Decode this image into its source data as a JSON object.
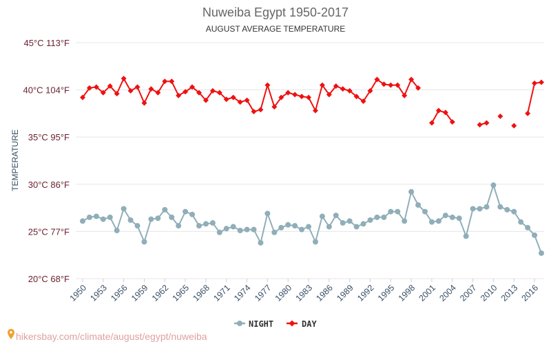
{
  "chart_data": {
    "type": "line",
    "title": "Nuweiba Egypt 1950-2017",
    "subtitle": "AUGUST AVERAGE TEMPERATURE",
    "ylabel": "TEMPERATURE",
    "source": "hikersbay.com/climate/august/egypt/nuweiba",
    "ylim": [
      20,
      45
    ],
    "xlim": [
      1950,
      2017
    ],
    "yticks": [
      {
        "value": 20,
        "label": "20°C 68°F"
      },
      {
        "value": 25,
        "label": "25°C 77°F"
      },
      {
        "value": 30,
        "label": "30°C 86°F"
      },
      {
        "value": 35,
        "label": "35°C 95°F"
      },
      {
        "value": 40,
        "label": "40°C 104°F"
      },
      {
        "value": 45,
        "label": "45°C 113°F"
      }
    ],
    "xtick_labels": [
      "1950",
      "1953",
      "1956",
      "1959",
      "1962",
      "1965",
      "1968",
      "1971",
      "1974",
      "1977",
      "1980",
      "1983",
      "1986",
      "1989",
      "1992",
      "1995",
      "1998",
      "2001",
      "2004",
      "2007",
      "2010",
      "2013",
      "2016"
    ],
    "x": [
      1950,
      1951,
      1952,
      1953,
      1954,
      1955,
      1956,
      1957,
      1958,
      1959,
      1960,
      1961,
      1962,
      1963,
      1964,
      1965,
      1966,
      1967,
      1968,
      1969,
      1970,
      1971,
      1972,
      1973,
      1974,
      1975,
      1976,
      1977,
      1978,
      1979,
      1980,
      1981,
      1982,
      1983,
      1984,
      1985,
      1986,
      1987,
      1988,
      1989,
      1990,
      1991,
      1992,
      1993,
      1994,
      1995,
      1996,
      1997,
      1998,
      1999,
      2000,
      2001,
      2002,
      2003,
      2004,
      2005,
      2006,
      2007,
      2008,
      2009,
      2010,
      2011,
      2012,
      2013,
      2014,
      2015,
      2016,
      2017
    ],
    "series": [
      {
        "name": "NIGHT",
        "color": "#90aeb8",
        "marker": "circle",
        "values": [
          26.1,
          26.5,
          26.6,
          26.3,
          26.5,
          25.1,
          27.4,
          26.2,
          25.6,
          23.9,
          26.3,
          26.4,
          27.3,
          26.5,
          25.6,
          27.1,
          26.8,
          25.6,
          25.8,
          25.9,
          24.9,
          25.3,
          25.5,
          25.1,
          25.2,
          25.2,
          23.8,
          26.9,
          24.9,
          25.4,
          25.7,
          25.6,
          25.2,
          25.5,
          23.9,
          26.6,
          25.5,
          26.7,
          25.9,
          26.1,
          25.5,
          25.8,
          26.2,
          26.5,
          26.5,
          27.1,
          27.1,
          26.1,
          29.2,
          27.8,
          27.1,
          26.0,
          26.1,
          26.7,
          26.5,
          26.4,
          24.5,
          27.4,
          27.4,
          27.6,
          29.9,
          27.6,
          27.3,
          27.1,
          26.0,
          25.4,
          24.6,
          22.7
        ]
      },
      {
        "name": "DAY",
        "color": "#ee1111",
        "marker": "diamond",
        "values": [
          39.2,
          40.2,
          40.3,
          39.7,
          40.4,
          39.6,
          41.2,
          39.9,
          40.3,
          38.6,
          40.1,
          39.7,
          40.9,
          40.9,
          39.4,
          39.8,
          40.3,
          39.7,
          38.9,
          39.9,
          39.7,
          39.0,
          39.2,
          38.7,
          38.9,
          37.7,
          37.9,
          40.5,
          38.2,
          39.2,
          39.7,
          39.5,
          39.3,
          39.2,
          37.8,
          40.5,
          39.5,
          40.4,
          40.1,
          39.9,
          39.3,
          38.8,
          39.9,
          41.1,
          40.6,
          40.5,
          40.5,
          39.4,
          41.1,
          40.2,
          null,
          36.5,
          37.8,
          37.6,
          36.6,
          null,
          null,
          null,
          36.3,
          36.5,
          null,
          37.2,
          null,
          36.2,
          null,
          37.5,
          40.7,
          40.8
        ]
      }
    ],
    "legend": {
      "placement": "bottom-center"
    },
    "grid": "horizontal"
  }
}
